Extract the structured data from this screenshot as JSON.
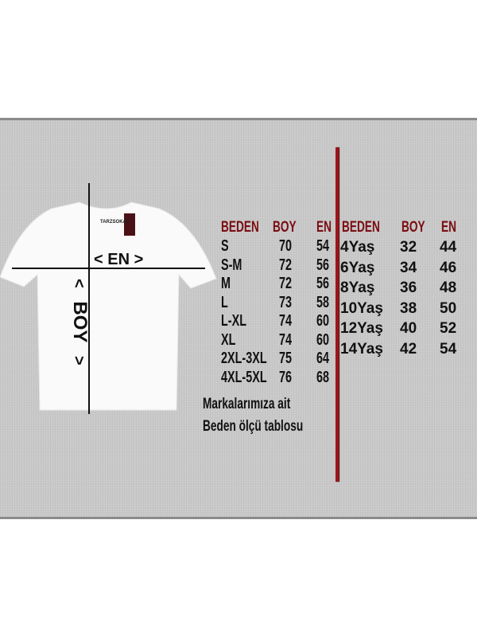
{
  "shirt": {
    "brand_label": "TARZSOKAK",
    "width_label": "< EN >",
    "length_label_arrow_top": "<",
    "length_label": "BOY",
    "length_label_arrow_bottom": ">"
  },
  "adult_table": {
    "headers": [
      "BEDEN",
      "BOY",
      "EN"
    ],
    "rows": [
      [
        "S",
        "70",
        "54"
      ],
      [
        "S-M",
        "72",
        "56"
      ],
      [
        "M",
        "72",
        "56"
      ],
      [
        "L",
        "73",
        "58"
      ],
      [
        "L-XL",
        "74",
        "60"
      ],
      [
        "XL",
        "74",
        "60"
      ],
      [
        "2XL-3XL",
        "75",
        "64"
      ],
      [
        "4XL-5XL",
        "76",
        "68"
      ]
    ]
  },
  "kids_table": {
    "headers": [
      "BEDEN",
      "BOY",
      "EN"
    ],
    "rows": [
      [
        "4Yaş",
        "32",
        "44"
      ],
      [
        "6Yaş",
        "34",
        "46"
      ],
      [
        "8Yaş",
        "36",
        "48"
      ],
      [
        "10Yaş",
        "38",
        "50"
      ],
      [
        "12Yaş",
        "40",
        "52"
      ],
      [
        "14Yaş",
        "42",
        "54"
      ]
    ]
  },
  "caption": {
    "line1": "Markalarımıza ait",
    "line2": "Beden ölçü tablosu"
  },
  "colors": {
    "header": "#7a0d12",
    "divider": "#a0141a",
    "panel": "#c9c9c9"
  }
}
